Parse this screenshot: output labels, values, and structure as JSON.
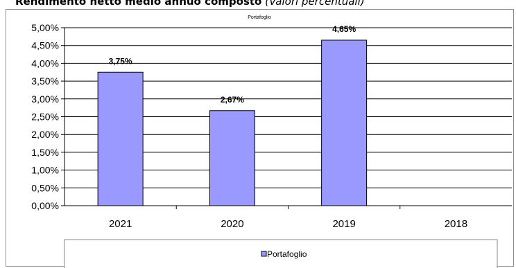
{
  "heading": {
    "bold_text": "Rendimento netto medio annuo composto",
    "italic_text": "(Valori percentuali)"
  },
  "chart_data": {
    "type": "bar",
    "title": "Portafoglio",
    "categories": [
      "2021",
      "2020",
      "2019",
      "2018"
    ],
    "series": [
      {
        "name": "Portafoglio",
        "values": [
          3.75,
          2.67,
          4.65,
          null
        ],
        "color": "#9999ff",
        "data_labels": [
          "3,75%",
          "2,67%",
          "4,65%",
          ""
        ]
      }
    ],
    "y_ticks": [
      "0,00%",
      "0,50%",
      "1,00%",
      "1,50%",
      "2,00%",
      "2,50%",
      "3,00%",
      "3,50%",
      "4,00%",
      "4,50%",
      "5,00%"
    ],
    "ylim": [
      0,
      5
    ],
    "grid": true,
    "legend_placement": "bottom"
  }
}
